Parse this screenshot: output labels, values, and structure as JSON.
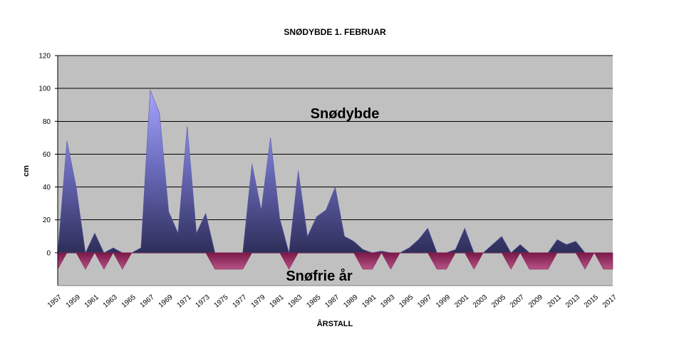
{
  "chart_data": {
    "type": "area",
    "title": "SNØDYBDE 1. FEBRUAR",
    "xlabel": "ÅRSTALL",
    "ylabel": "cm",
    "ylim": [
      -20,
      120
    ],
    "yticks": [
      0,
      20,
      40,
      60,
      80,
      100,
      120
    ],
    "xlim": [
      1957,
      2017
    ],
    "xticks": [
      1957,
      1959,
      1961,
      1963,
      1965,
      1967,
      1969,
      1971,
      1973,
      1975,
      1977,
      1979,
      1981,
      1983,
      1985,
      1987,
      1989,
      1991,
      1993,
      1995,
      1997,
      1999,
      2001,
      2003,
      2005,
      2007,
      2009,
      2011,
      2013,
      2015,
      2017
    ],
    "grid": true,
    "background_color": "#C0C0C0",
    "annotations": [
      "Snødybde",
      "Snøfrie år"
    ],
    "series": [
      {
        "color": "#5A5AA8",
        "x": [
          1957,
          1958,
          1959,
          1960,
          1961,
          1962,
          1963,
          1964,
          1965,
          1966,
          1967,
          1968,
          1969,
          1970,
          1971,
          1972,
          1973,
          1974,
          1975,
          1976,
          1977,
          1978,
          1979,
          1980,
          1981,
          1982,
          1983,
          1984,
          1985,
          1986,
          1987,
          1988,
          1989,
          1990,
          1991,
          1992,
          1993,
          1994,
          1995,
          1996,
          1997,
          1998,
          1999,
          2000,
          2001,
          2002,
          2003,
          2004,
          2005,
          2006,
          2007,
          2008,
          2009,
          2010,
          2011,
          2012,
          2013,
          2014,
          2015,
          2016,
          2017
        ],
        "values": [
          0,
          68,
          40,
          0,
          12,
          0,
          3,
          0,
          0,
          3,
          99,
          85,
          25,
          12,
          77,
          12,
          24,
          0,
          0,
          0,
          0,
          54,
          26,
          70,
          21,
          0,
          50,
          10,
          22,
          26,
          40,
          10,
          7,
          2,
          0,
          1,
          0,
          0,
          3,
          8,
          15,
          0,
          0,
          2,
          15,
          0,
          0,
          5,
          10,
          0,
          5,
          0,
          0,
          0,
          8,
          5,
          7,
          0,
          0,
          0,
          0
        ]
      },
      {
        "color": "#8B2252",
        "x": [
          1957,
          1958,
          1959,
          1960,
          1961,
          1962,
          1963,
          1964,
          1965,
          1966,
          1967,
          1968,
          1969,
          1970,
          1971,
          1972,
          1973,
          1974,
          1975,
          1976,
          1977,
          1978,
          1979,
          1980,
          1981,
          1982,
          1983,
          1984,
          1985,
          1986,
          1987,
          1988,
          1989,
          1990,
          1991,
          1992,
          1993,
          1994,
          1995,
          1996,
          1997,
          1998,
          1999,
          2000,
          2001,
          2002,
          2003,
          2004,
          2005,
          2006,
          2007,
          2008,
          2009,
          2010,
          2011,
          2012,
          2013,
          2014,
          2015,
          2016,
          2017
        ],
        "values": [
          -10,
          0,
          0,
          -10,
          0,
          -10,
          0,
          -10,
          0,
          0,
          0,
          0,
          0,
          0,
          0,
          0,
          0,
          -10,
          -10,
          -10,
          -10,
          0,
          0,
          0,
          0,
          -10,
          0,
          0,
          0,
          0,
          0,
          0,
          0,
          -10,
          -10,
          0,
          -10,
          0,
          0,
          0,
          0,
          -10,
          -10,
          0,
          0,
          -10,
          0,
          0,
          0,
          -10,
          0,
          -10,
          -10,
          -10,
          0,
          0,
          0,
          -10,
          0,
          -10,
          -10
        ]
      }
    ]
  }
}
